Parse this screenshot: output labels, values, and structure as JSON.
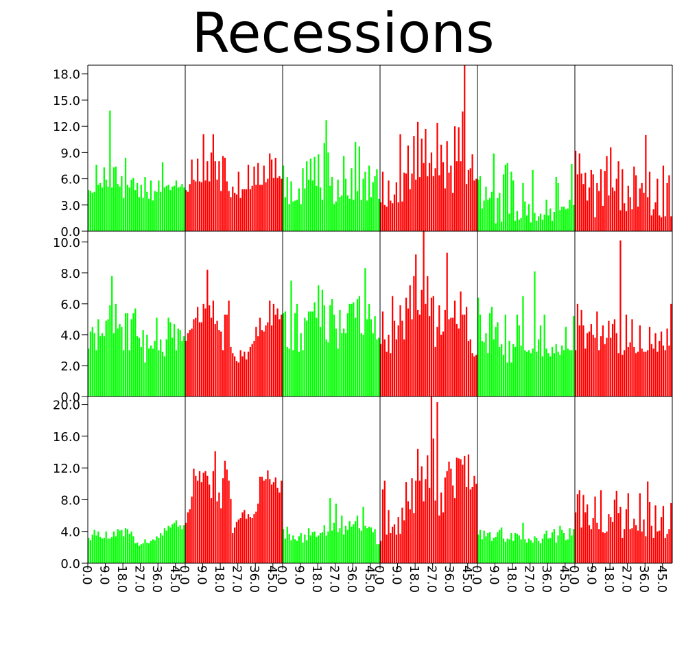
{
  "chart_data": {
    "type": "bar",
    "title": "Recessions",
    "grid": false,
    "x_tick_labels": [
      "0.0",
      "9.0",
      "18.0",
      "27.0",
      "36.0",
      "45.0"
    ],
    "bins_per_panel": 50,
    "colors": {
      "green": "#00ff00",
      "red": "#ff0000"
    },
    "rows": [
      {
        "ylim": [
          0,
          19
        ],
        "y_ticks": [
          "0.0",
          "3.0",
          "6.0",
          "9.0",
          "12.0",
          "15.0",
          "18.0"
        ],
        "panels": [
          {
            "color": "green",
            "values": [
              4.7,
              4.6,
              4.4,
              4.5,
              7.6,
              5.3,
              5.5,
              5.0,
              7.3,
              5.9,
              5.1,
              13.8,
              5.0,
              7.3,
              7.4,
              5.4,
              5.1,
              6.3,
              3.8,
              8.4,
              5.3,
              5.0,
              5.9,
              6.1,
              4.7,
              5.5,
              3.9,
              5.3,
              3.8,
              6.2,
              4.5,
              3.7,
              5.8,
              3.5,
              4.6,
              4.5,
              5.8,
              4.5,
              7.9,
              5.0,
              5.2,
              5.3,
              4.7,
              5.1,
              5.2,
              5.8,
              5.0,
              5.1,
              5.4,
              5.0
            ]
          },
          {
            "color": "red",
            "values": [
              4.7,
              4.5,
              5.4,
              8.2,
              5.9,
              5.7,
              8.3,
              5.7,
              5.6,
              11.1,
              5.8,
              8.0,
              5.7,
              9.0,
              11.1,
              8.0,
              5.9,
              8.0,
              4.6,
              8.6,
              8.4,
              5.7,
              4.6,
              3.9,
              5.1,
              4.4,
              4.2,
              6.8,
              3.8,
              4.8,
              4.8,
              4.8,
              7.6,
              4.8,
              5.2,
              7.4,
              5.3,
              7.8,
              5.3,
              5.3,
              7.5,
              5.6,
              6.0,
              8.9,
              8.2,
              6.1,
              8.4,
              6.1,
              6.3,
              6.0
            ]
          },
          {
            "color": "green",
            "values": [
              7.5,
              3.9,
              6.2,
              3.1,
              5.7,
              3.4,
              3.5,
              3.6,
              4.9,
              3.1,
              7.2,
              4.9,
              8.0,
              5.9,
              8.3,
              5.8,
              8.5,
              5.2,
              8.8,
              5.0,
              3.6,
              10.1,
              12.7,
              9.0,
              5.2,
              6.2,
              3.1,
              3.4,
              5.9,
              3.9,
              4.1,
              8.6,
              6.0,
              4.1,
              3.7,
              7.2,
              3.6,
              10.2,
              4.6,
              9.7,
              3.6,
              6.0,
              6.8,
              3.5,
              7.5,
              3.9,
              5.6,
              6.3,
              7.1,
              3.7
            ]
          },
          {
            "color": "red",
            "values": [
              3.3,
              6.8,
              3.0,
              2.8,
              5.8,
              3.5,
              3.2,
              4.2,
              5.6,
              3.3,
              11.1,
              3.4,
              6.7,
              6.6,
              9.8,
              4.8,
              6.6,
              10.9,
              5.9,
              12.5,
              6.2,
              10.6,
              7.8,
              11.7,
              6.3,
              7.8,
              9.0,
              6.3,
              7.2,
              12.4,
              6.4,
              9.9,
              7.9,
              4.9,
              10.3,
              6.7,
              7.5,
              4.4,
              12.0,
              8.0,
              11.9,
              8.0,
              13.7,
              19.0,
              5.4,
              7.0,
              7.2,
              8.8,
              5.8,
              6.0
            ]
          },
          {
            "color": "green",
            "values": [
              5.9,
              6.3,
              2.6,
              3.5,
              5.1,
              3.6,
              3.8,
              4.5,
              8.9,
              0.9,
              3.8,
              4.4,
              1.1,
              6.5,
              7.6,
              7.8,
              2.0,
              6.8,
              5.8,
              1.2,
              2.3,
              1.3,
              1.5,
              5.5,
              3.4,
              1.8,
              3.1,
              1.0,
              7.0,
              2.1,
              1.2,
              1.7,
              2.0,
              1.3,
              1.9,
              3.6,
              1.8,
              2.6,
              1.2,
              2.2,
              6.2,
              5.5,
              2.4,
              2.8,
              2.8,
              2.5,
              2.6,
              3.6,
              7.7,
              3.0
            ]
          },
          {
            "color": "red",
            "values": [
              9.2,
              6.5,
              8.9,
              6.6,
              5.4,
              6.7,
              3.5,
              5.0,
              7.0,
              6.5,
              1.6,
              5.5,
              4.6,
              7.1,
              2.9,
              6.9,
              8.6,
              4.1,
              9.6,
              5.0,
              4.6,
              6.0,
              8.0,
              2.4,
              7.1,
              3.2,
              2.3,
              5.2,
              3.9,
              2.5,
              7.4,
              6.4,
              2.8,
              4.9,
              5.5,
              4.4,
              11.0,
              3.9,
              6.8,
              1.8,
              2.5,
              3.3,
              6.0,
              1.8,
              1.6,
              7.5,
              1.7,
              5.5,
              6.4,
              1.7
            ]
          }
        ]
      },
      {
        "ylim": [
          0,
          10.7
        ],
        "y_ticks": [
          "0.0",
          "2.0",
          "4.0",
          "6.0",
          "8.0",
          "10.0"
        ],
        "panels": [
          {
            "color": "green",
            "values": [
              3.1,
              4.2,
              4.5,
              4.1,
              3.0,
              5.0,
              3.9,
              4.1,
              3.9,
              4.9,
              5.0,
              5.9,
              7.8,
              4.1,
              6.0,
              4.4,
              4.7,
              4.5,
              3.0,
              5.4,
              5.4,
              3.0,
              5.0,
              5.4,
              5.7,
              3.9,
              3.8,
              3.2,
              4.3,
              2.2,
              4.0,
              3.1,
              3.3,
              3.1,
              3.6,
              5.1,
              3.0,
              3.7,
              2.9,
              2.6,
              3.7,
              5.1,
              4.8,
              3.8,
              4.7,
              3.0,
              4.4,
              4.3,
              3.6,
              3.9
            ]
          },
          {
            "color": "red",
            "values": [
              3.6,
              4.1,
              4.3,
              4.4,
              5.0,
              5.1,
              5.8,
              4.8,
              4.8,
              6.0,
              5.7,
              8.2,
              5.9,
              5.1,
              6.2,
              4.7,
              4.9,
              4.3,
              4.2,
              3.0,
              5.3,
              5.3,
              6.2,
              3.2,
              2.8,
              2.6,
              2.3,
              2.2,
              3.0,
              2.6,
              2.9,
              2.4,
              2.9,
              3.2,
              3.4,
              3.6,
              4.5,
              3.9,
              5.1,
              4.3,
              4.2,
              4.6,
              4.8,
              6.2,
              4.6,
              6.0,
              5.3,
              5.7,
              5.0,
              5.3
            ]
          },
          {
            "color": "green",
            "values": [
              5.4,
              5.5,
              3.2,
              3.1,
              7.5,
              3.0,
              5.4,
              6.0,
              2.9,
              4.1,
              3.0,
              5.1,
              4.9,
              5.5,
              5.5,
              5.5,
              6.1,
              5.1,
              7.2,
              4.5,
              6.9,
              5.9,
              3.7,
              3.5,
              5.9,
              6.3,
              5.3,
              4.4,
              3.1,
              5.6,
              4.1,
              4.4,
              4.1,
              5.4,
              6.0,
              6.0,
              6.1,
              5.1,
              6.3,
              6.5,
              4.1,
              4.0,
              8.3,
              5.0,
              6.0,
              5.0,
              4.1,
              5.2,
              3.7,
              3.8
            ]
          },
          {
            "color": "red",
            "values": [
              3.4,
              5.5,
              3.7,
              2.9,
              4.0,
              2.8,
              6.5,
              4.9,
              3.7,
              4.6,
              5.9,
              4.9,
              3.7,
              6.4,
              5.7,
              7.2,
              5.0,
              7.8,
              9.2,
              5.6,
              5.3,
              6.9,
              10.7,
              6.0,
              7.8,
              5.2,
              6.4,
              6.5,
              3.2,
              4.5,
              5.9,
              4.0,
              4.2,
              5.6,
              9.3,
              5.0,
              5.1,
              5.1,
              6.2,
              4.7,
              4.4,
              6.8,
              5.3,
              5.3,
              5.8,
              3.6,
              3.7,
              2.8,
              2.6,
              2.7
            ]
          },
          {
            "color": "green",
            "values": [
              6.4,
              5.3,
              3.6,
              3.5,
              4.1,
              2.8,
              5.4,
              5.8,
              3.7,
              4.5,
              4.8,
              3.2,
              3.4,
              2.7,
              5.3,
              2.2,
              3.6,
              2.2,
              3.4,
              3.2,
              5.3,
              4.6,
              3.3,
              6.5,
              3.0,
              2.9,
              3.0,
              2.8,
              3.1,
              8.1,
              2.9,
              3.7,
              4.6,
              2.6,
              5.3,
              3.1,
              2.8,
              2.6,
              3.2,
              2.8,
              3.4,
              2.9,
              2.7,
              3.3,
              3.0,
              4.5,
              3.1,
              3.0,
              3.0,
              5.2
            ]
          },
          {
            "color": "red",
            "values": [
              3.0,
              6.0,
              4.6,
              5.6,
              4.6,
              3.1,
              4.1,
              4.2,
              4.7,
              4.0,
              3.8,
              5.5,
              3.0,
              3.9,
              4.6,
              3.4,
              3.8,
              4.9,
              3.8,
              4.7,
              5.0,
              4.1,
              2.8,
              10.1,
              2.7,
              3.0,
              5.3,
              3.2,
              3.5,
              5.0,
              3.2,
              2.8,
              2.9,
              4.6,
              3.1,
              2.9,
              2.9,
              3.0,
              4.5,
              3.4,
              3.1,
              4.1,
              2.9,
              3.6,
              4.2,
              3.3,
              3.0,
              4.4,
              3.3,
              6.0
            ]
          }
        ]
      },
      {
        "ylim": [
          0,
          21
        ],
        "y_ticks": [
          "0.0",
          "4.0",
          "8.0",
          "12.0",
          "16.0",
          "20.0"
        ],
        "panels": [
          {
            "color": "green",
            "values": [
              3.2,
              2.9,
              3.6,
              4.2,
              3.5,
              4.0,
              3.3,
              3.1,
              3.2,
              4.0,
              3.1,
              3.1,
              3.3,
              4.0,
              3.4,
              4.3,
              4.1,
              4.2,
              3.4,
              4.4,
              4.3,
              3.7,
              4.0,
              3.4,
              2.5,
              2.6,
              2.2,
              2.4,
              2.5,
              3.0,
              2.6,
              2.5,
              2.8,
              3.0,
              2.9,
              3.4,
              3.2,
              3.8,
              3.5,
              4.4,
              4.1,
              4.7,
              4.5,
              4.9,
              5.1,
              5.4,
              4.6,
              4.8,
              4.3,
              4.8
            ]
          },
          {
            "color": "red",
            "values": [
              5.1,
              6.4,
              6.8,
              8.4,
              11.9,
              11.0,
              10.4,
              11.6,
              10.2,
              11.4,
              11.6,
              11.0,
              9.9,
              8.2,
              11.6,
              14.1,
              7.8,
              8.9,
              6.9,
              10.7,
              12.9,
              11.8,
              10.4,
              8.1,
              3.8,
              4.5,
              5.2,
              5.5,
              5.7,
              6.4,
              6.7,
              5.6,
              6.2,
              5.8,
              5.7,
              6.2,
              6.5,
              7.5,
              10.9,
              10.9,
              10.4,
              10.6,
              11.7,
              10.6,
              9.9,
              10.2,
              10.8,
              9.5,
              8.9,
              10.4
            ]
          },
          {
            "color": "green",
            "values": [
              4.3,
              3.1,
              4.6,
              3.7,
              2.9,
              3.5,
              3.0,
              2.8,
              3.4,
              3.8,
              2.6,
              3.6,
              2.9,
              4.4,
              3.5,
              3.9,
              4.0,
              3.3,
              3.5,
              3.8,
              3.9,
              4.8,
              3.5,
              4.0,
              8.2,
              4.1,
              5.1,
              7.5,
              3.9,
              4.4,
              6.0,
              3.6,
              4.7,
              4.2,
              5.3,
              4.6,
              4.9,
              5.3,
              6.0,
              4.4,
              4.1,
              7.1,
              4.7,
              4.4,
              4.6,
              4.5,
              3.9,
              4.3,
              2.4,
              2.4
            ]
          },
          {
            "color": "red",
            "values": [
              2.8,
              9.3,
              10.4,
              3.6,
              6.7,
              3.8,
              4.6,
              4.9,
              3.6,
              5.8,
              3.7,
              7.0,
              5.4,
              10.2,
              7.8,
              6.8,
              10.7,
              6.3,
              10.4,
              14.4,
              10.4,
              12.2,
              7.8,
              10.6,
              13.6,
              9.5,
              21.0,
              15.7,
              7.9,
              20.3,
              6.0,
              8.9,
              6.4,
              10.8,
              11.6,
              12.8,
              11.9,
              9.8,
              8.2,
              13.3,
              13.2,
              13.1,
              12.4,
              13.5,
              9.6,
              13.7,
              9.3,
              9.6,
              11.0,
              10.0
            ]
          },
          {
            "color": "green",
            "values": [
              3.6,
              4.2,
              3.0,
              4.1,
              3.4,
              3.8,
              3.9,
              2.8,
              3.2,
              3.3,
              3.9,
              4.2,
              4.5,
              3.1,
              2.7,
              3.1,
              3.0,
              3.8,
              2.8,
              3.8,
              3.7,
              3.5,
              3.0,
              5.1,
              3.0,
              2.6,
              3.1,
              2.9,
              2.6,
              3.4,
              3.2,
              2.8,
              2.5,
              3.1,
              3.7,
              4.1,
              3.1,
              3.2,
              3.9,
              4.3,
              2.6,
              3.5,
              4.7,
              4.2,
              3.8,
              2.9,
              3.0,
              4.4,
              3.5,
              4.3
            ]
          },
          {
            "color": "red",
            "values": [
              6.4,
              8.7,
              9.2,
              4.5,
              8.6,
              6.4,
              7.4,
              4.8,
              4.3,
              5.7,
              8.4,
              5.1,
              4.3,
              9.2,
              3.9,
              3.8,
              4.0,
              6.2,
              5.8,
              5.2,
              8.0,
              9.1,
              6.3,
              7.1,
              3.2,
              4.3,
              6.8,
              8.8,
              4.3,
              4.4,
              5.6,
              4.8,
              4.1,
              8.8,
              4.0,
              5.5,
              3.4,
              10.3,
              7.7,
              4.7,
              3.2,
              7.3,
              4.0,
              4.1,
              5.8,
              7.2,
              3.2,
              3.7,
              4.3,
              7.6
            ]
          }
        ]
      }
    ]
  }
}
